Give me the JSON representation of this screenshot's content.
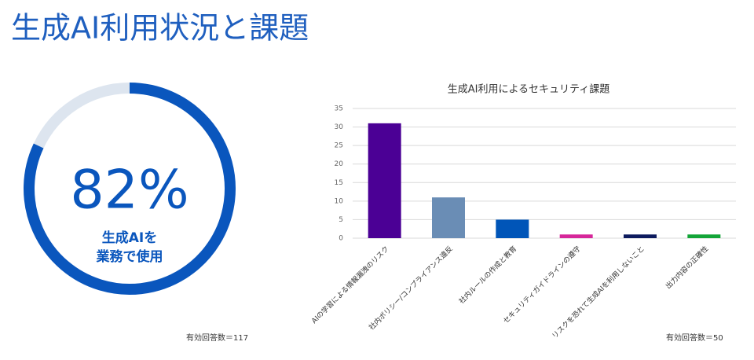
{
  "slide_title": "生成AI利用状況と課題",
  "chart_data": [
    {
      "type": "donut",
      "values": [
        82,
        18
      ],
      "value_labels": [
        "82%",
        null
      ],
      "colors": [
        "#0a56bd",
        "#dde5ef"
      ],
      "center_label": [
        "生成AIを",
        "業務で使用"
      ],
      "note": "有効回答数＝117"
    },
    {
      "type": "bar",
      "title": "生成AI利用によるセキュリティ課題",
      "categories": [
        "AIの学習による情報漏洩のリスク",
        "社内ポリシー/コンプライアンス違反",
        "社内ルールの作成と教育",
        "セキュリティガイドラインの遵守",
        "リスクを恐れて生成AIを利用しないこと",
        "出力内容の正確性"
      ],
      "values": [
        31,
        11,
        5,
        1,
        1,
        1
      ],
      "colors": [
        "#4b0095",
        "#6a8db5",
        "#0055b8",
        "#d6279a",
        "#0d1b5e",
        "#13a538"
      ],
      "ylim": [
        0,
        35
      ],
      "yticks": [
        0,
        5,
        10,
        15,
        20,
        25,
        30,
        35
      ],
      "grid": true,
      "note": "有効回答数＝50"
    }
  ]
}
